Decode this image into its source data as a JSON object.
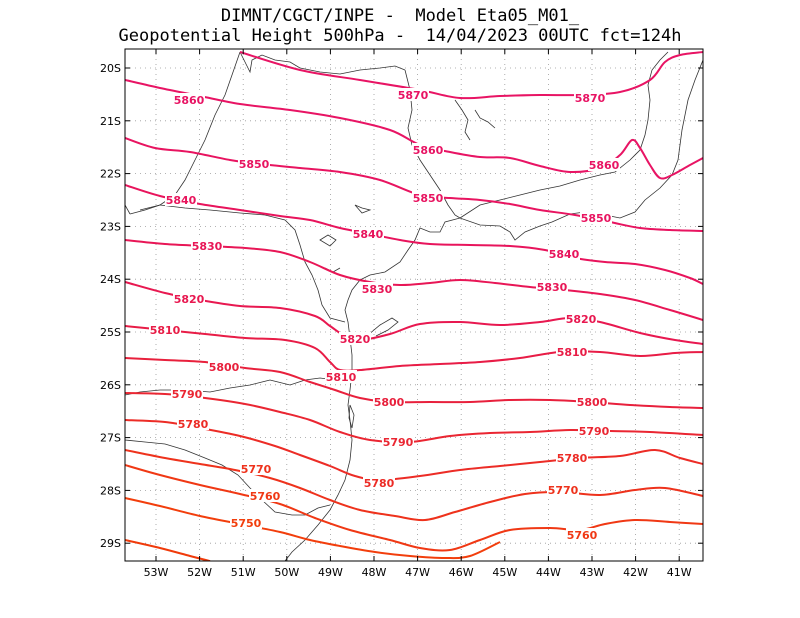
{
  "header": {
    "line1": "DIMNT/CGCT/INPE -  Model Eta05_M01_",
    "line2": "Geopotential Height 500hPa -  14/04/2023 00UTC fct=124h"
  },
  "axes": {
    "lat_ticks": [
      "20S",
      "21S",
      "22S",
      "23S",
      "24S",
      "25S",
      "26S",
      "27S",
      "28S",
      "29S"
    ],
    "lon_ticks": [
      "53W",
      "52W",
      "51W",
      "50W",
      "49W",
      "48W",
      "47W",
      "46W",
      "45W",
      "44W",
      "43W",
      "42W",
      "41W"
    ]
  },
  "colors": {
    "contour_high": "#e8145a",
    "contour_low": "#f03a0a",
    "coast": "#333333",
    "grid": "#9a9a9a"
  },
  "contours": [
    {
      "value": 5870,
      "label": "5870",
      "color": "#e81464"
    },
    {
      "value": 5860,
      "label": "5860",
      "color": "#e81464"
    },
    {
      "value": 5850,
      "label": "5850",
      "color": "#e81460"
    },
    {
      "value": 5840,
      "label": "5840",
      "color": "#e8145c"
    },
    {
      "value": 5830,
      "label": "5830",
      "color": "#e81656"
    },
    {
      "value": 5820,
      "label": "5820",
      "color": "#e81850"
    },
    {
      "value": 5810,
      "label": "5810",
      "color": "#e81c46"
    },
    {
      "value": 5800,
      "label": "5800",
      "color": "#e8203c"
    },
    {
      "value": 5790,
      "label": "5790",
      "color": "#ea2632"
    },
    {
      "value": 5780,
      "label": "5780",
      "color": "#ec2c26"
    },
    {
      "value": 5770,
      "label": "5770",
      "color": "#ee321c"
    },
    {
      "value": 5760,
      "label": "5760",
      "color": "#f03814"
    },
    {
      "value": 5750,
      "label": "5750",
      "color": "#f23e0c"
    }
  ]
}
